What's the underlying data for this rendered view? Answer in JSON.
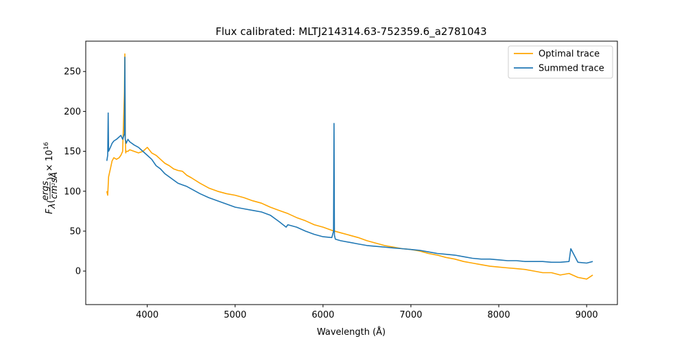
{
  "chart_data": {
    "type": "line",
    "title": "Flux calibrated: MLTJ214314.63-752359.6_a2781043",
    "xlabel": "Wavelength (Å)",
    "ylabel": "F_λ (ergs / cm² s Å) × 10¹⁶",
    "ylabel_parts": {
      "symbol": "F",
      "symbol_sub": "λ",
      "num": "ergs",
      "den_main": "cm",
      "den_sup": "2",
      "den_rest": "sÅ",
      "mult": "× 10",
      "exp": "16"
    },
    "xlim": [
      3300,
      9350
    ],
    "ylim": [
      -42,
      288
    ],
    "xticks": [
      4000,
      5000,
      6000,
      7000,
      8000,
      9000
    ],
    "yticks": [
      0,
      50,
      100,
      150,
      200,
      250
    ],
    "grid": false,
    "legend_position": "top-right",
    "series": [
      {
        "name": "Optimal trace",
        "color": "#ffa500",
        "x": [
          3540,
          3550,
          3560,
          3580,
          3600,
          3620,
          3650,
          3680,
          3700,
          3720,
          3740,
          3745,
          3750,
          3755,
          3760,
          3780,
          3800,
          3850,
          3900,
          3950,
          4000,
          4050,
          4100,
          4150,
          4200,
          4250,
          4300,
          4350,
          4400,
          4450,
          4500,
          4600,
          4700,
          4800,
          4900,
          5000,
          5100,
          5200,
          5300,
          5400,
          5500,
          5600,
          5700,
          5800,
          5900,
          6000,
          6100,
          6200,
          6300,
          6400,
          6500,
          6600,
          6700,
          6800,
          6900,
          7000,
          7100,
          7200,
          7300,
          7400,
          7500,
          7600,
          7700,
          7800,
          7900,
          8000,
          8100,
          8200,
          8300,
          8400,
          8500,
          8600,
          8700,
          8800,
          8900,
          9000,
          9070
        ],
        "y": [
          100,
          95,
          118,
          128,
          138,
          142,
          140,
          142,
          145,
          150,
          225,
          272,
          170,
          148,
          150,
          150,
          152,
          150,
          148,
          150,
          155,
          148,
          145,
          140,
          135,
          132,
          128,
          126,
          125,
          120,
          117,
          110,
          104,
          100,
          97,
          95,
          92,
          88,
          85,
          80,
          76,
          72,
          67,
          63,
          58,
          55,
          51,
          48,
          45,
          42,
          38,
          35,
          32,
          30,
          28,
          27,
          25,
          22,
          20,
          17,
          15,
          12,
          10,
          8,
          6,
          5,
          4,
          3,
          2,
          0,
          -2,
          -2,
          -5,
          -3,
          -8,
          -10,
          -5
        ]
      },
      {
        "name": "Summed trace",
        "color": "#1f77b4",
        "x": [
          3540,
          3550,
          3555,
          3560,
          3580,
          3600,
          3620,
          3650,
          3680,
          3700,
          3720,
          3740,
          3745,
          3750,
          3755,
          3760,
          3780,
          3800,
          3850,
          3900,
          3950,
          4000,
          4050,
          4100,
          4150,
          4200,
          4250,
          4300,
          4350,
          4400,
          4450,
          4500,
          4600,
          4700,
          4800,
          4900,
          5000,
          5100,
          5200,
          5300,
          5400,
          5500,
          5580,
          5600,
          5700,
          5800,
          5900,
          6000,
          6100,
          6120,
          6125,
          6130,
          6140,
          6200,
          6300,
          6400,
          6500,
          6600,
          6700,
          6800,
          6900,
          7000,
          7100,
          7200,
          7300,
          7400,
          7500,
          7600,
          7700,
          7800,
          7900,
          8000,
          8100,
          8200,
          8300,
          8400,
          8500,
          8600,
          8700,
          8800,
          8820,
          8900,
          9000,
          9070
        ],
        "y": [
          138,
          145,
          198,
          150,
          155,
          160,
          163,
          165,
          168,
          170,
          165,
          172,
          268,
          165,
          163,
          160,
          165,
          162,
          158,
          155,
          150,
          145,
          140,
          132,
          128,
          122,
          118,
          114,
          110,
          108,
          106,
          103,
          97,
          92,
          88,
          84,
          80,
          78,
          76,
          74,
          70,
          62,
          55,
          58,
          55,
          50,
          46,
          43,
          42,
          50,
          185,
          45,
          40,
          38,
          36,
          34,
          32,
          31,
          30,
          29,
          28,
          27,
          26,
          24,
          22,
          21,
          20,
          18,
          16,
          15,
          15,
          14,
          13,
          13,
          12,
          12,
          12,
          11,
          11,
          12,
          28,
          11,
          10,
          12
        ]
      }
    ]
  }
}
